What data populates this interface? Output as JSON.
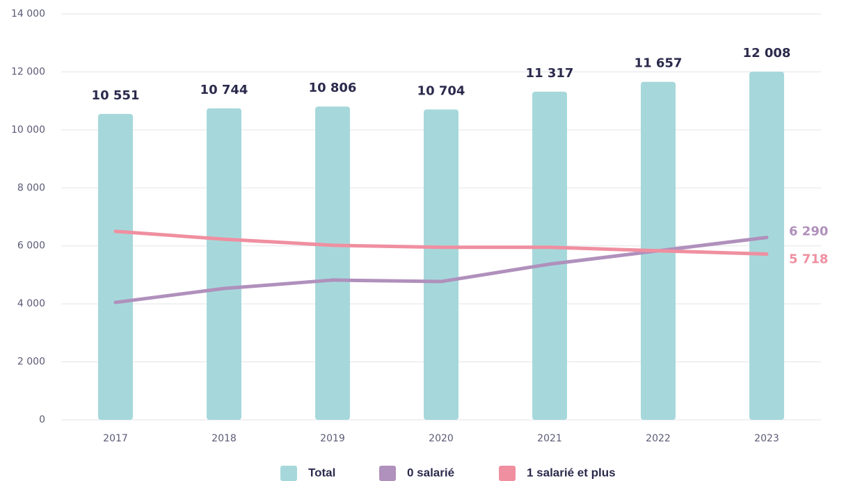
{
  "chart_data": {
    "type": "bar",
    "categories": [
      "2017",
      "2018",
      "2019",
      "2020",
      "2021",
      "2022",
      "2023"
    ],
    "series": [
      {
        "name": "Total",
        "type": "bar",
        "color": "#a6d8db",
        "values": [
          10551,
          10744,
          10806,
          10704,
          11317,
          11657,
          12008
        ],
        "value_labels": [
          "10 551",
          "10 744",
          "10 806",
          "10 704",
          "11 317",
          "11 657",
          "12 008"
        ]
      },
      {
        "name": "0 salarié",
        "type": "line",
        "color": "#b090bc",
        "values": [
          4050,
          4530,
          4820,
          4770,
          5370,
          5830,
          6290
        ],
        "value_labels": [
          null,
          null,
          null,
          null,
          null,
          null,
          "6 290"
        ]
      },
      {
        "name": "1 salarié et plus",
        "type": "line",
        "color": "#ef8fa0",
        "values": [
          6500,
          6230,
          6020,
          5950,
          5950,
          5830,
          5718
        ],
        "value_labels": [
          null,
          null,
          null,
          null,
          null,
          null,
          "5 718"
        ]
      }
    ],
    "ylim": [
      0,
      14000
    ],
    "yticks": [
      0,
      {
        "value": 2000,
        "label": "2 000"
      },
      {
        "value": 4000,
        "label": "4 000"
      },
      {
        "value": 6000,
        "label": "6 000"
      },
      {
        "value": 8000,
        "label": "8 000"
      },
      {
        "value": 10000,
        "label": "10 000"
      },
      {
        "value": 12000,
        "label": "12 000"
      },
      {
        "value": 14000,
        "label": "14 000"
      }
    ],
    "grid": true,
    "legend": "bottom"
  }
}
